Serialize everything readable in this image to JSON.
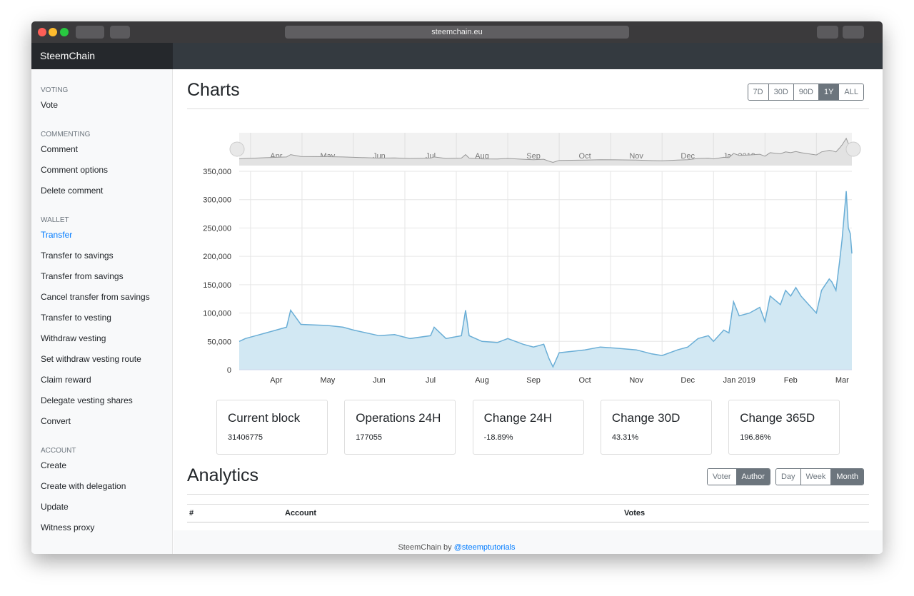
{
  "browser": {
    "url": "steemchain.eu"
  },
  "brand": "SteemChain",
  "sidebar": {
    "active_section": 2,
    "active_item": 0,
    "sections": [
      {
        "heading": "VOTING",
        "items": [
          "Vote"
        ]
      },
      {
        "heading": "COMMENTING",
        "items": [
          "Comment",
          "Comment options",
          "Delete comment"
        ]
      },
      {
        "heading": "WALLET",
        "items": [
          "Transfer",
          "Transfer to savings",
          "Transfer from savings",
          "Cancel transfer from savings",
          "Transfer to vesting",
          "Withdraw vesting",
          "Set withdraw vesting route",
          "Claim reward",
          "Delegate vesting shares",
          "Convert"
        ]
      },
      {
        "heading": "ACCOUNT",
        "items": [
          "Create",
          "Create with delegation",
          "Update",
          "Witness proxy"
        ]
      }
    ]
  },
  "charts": {
    "title": "Charts",
    "ranges": [
      "7D",
      "30D",
      "90D",
      "1Y",
      "ALL"
    ],
    "active_range": 3
  },
  "chart_data": {
    "type": "area",
    "color": "#6aaed6",
    "fill": "#d2e8f3",
    "grid": true,
    "x": [
      3.28,
      3.4,
      3.6,
      3.8,
      4.0,
      4.2,
      4.28,
      4.48,
      5.0,
      5.3,
      5.5,
      6.0,
      6.3,
      6.6,
      7.0,
      7.07,
      7.3,
      7.6,
      7.68,
      7.75,
      8.0,
      8.3,
      8.5,
      8.8,
      9.0,
      9.2,
      9.3,
      9.38,
      9.5,
      10.0,
      10.3,
      10.6,
      11.0,
      11.3,
      11.5,
      11.8,
      12.0,
      12.2,
      12.4,
      12.5,
      12.7,
      12.8,
      12.89,
      13.0,
      13.2,
      13.4,
      13.5,
      13.6,
      13.8,
      13.9,
      14.0,
      14.1,
      14.2,
      14.35,
      14.5,
      14.6,
      14.75,
      14.8,
      14.88,
      14.95,
      15.0,
      15.08,
      15.12,
      15.16,
      15.19
    ],
    "values": [
      50000,
      55000,
      60000,
      65000,
      70000,
      75000,
      105000,
      80000,
      78000,
      75000,
      70000,
      60000,
      62000,
      55000,
      60000,
      75000,
      55000,
      60000,
      105000,
      60000,
      50000,
      48000,
      55000,
      45000,
      40000,
      45000,
      20000,
      5000,
      30000,
      35000,
      40000,
      38000,
      35000,
      28000,
      25000,
      35000,
      40000,
      55000,
      60000,
      50000,
      70000,
      65000,
      120000,
      95000,
      100000,
      110000,
      85000,
      130000,
      115000,
      140000,
      130000,
      145000,
      130000,
      115000,
      100000,
      140000,
      160000,
      155000,
      140000,
      190000,
      230000,
      315000,
      250000,
      240000,
      205000
    ],
    "xlim": [
      3.28,
      15.19
    ],
    "xticks": [
      {
        "value": 4,
        "label": "Apr"
      },
      {
        "value": 5,
        "label": "May"
      },
      {
        "value": 6,
        "label": "Jun"
      },
      {
        "value": 7,
        "label": "Jul"
      },
      {
        "value": 8,
        "label": "Aug"
      },
      {
        "value": 9,
        "label": "Sep"
      },
      {
        "value": 10,
        "label": "Oct"
      },
      {
        "value": 11,
        "label": "Nov"
      },
      {
        "value": 12,
        "label": "Dec"
      },
      {
        "value": 13,
        "label": "Jan 2019"
      },
      {
        "value": 14,
        "label": "Feb"
      },
      {
        "value": 15,
        "label": "Mar"
      }
    ],
    "ylim": [
      0,
      350000
    ],
    "yticks": [
      0,
      {
        "value": 50000,
        "label": "50,000"
      },
      {
        "value": 100000,
        "label": "100,000"
      },
      {
        "value": 150000,
        "label": "150,000"
      },
      {
        "value": 200000,
        "label": "200,000"
      },
      {
        "value": 250000,
        "label": "250,000"
      },
      {
        "value": 300000,
        "label": "300,000"
      },
      {
        "value": 350000,
        "label": "350,000"
      }
    ]
  },
  "stats": [
    {
      "title": "Current block",
      "value": "31406775"
    },
    {
      "title": "Operations 24H",
      "value": "177055"
    },
    {
      "title": "Change 24H",
      "value": "-18.89%"
    },
    {
      "title": "Change 30D",
      "value": "43.31%"
    },
    {
      "title": "Change 365D",
      "value": "196.86%"
    }
  ],
  "analytics": {
    "title": "Analytics",
    "modes": [
      "Voter",
      "Author"
    ],
    "active_mode": 1,
    "periods": [
      "Day",
      "Week",
      "Month"
    ],
    "active_period": 2,
    "columns": [
      "#",
      "Account",
      "Votes"
    ]
  },
  "footer": {
    "text": "SteemChain by",
    "link": "@steemptutorials"
  }
}
